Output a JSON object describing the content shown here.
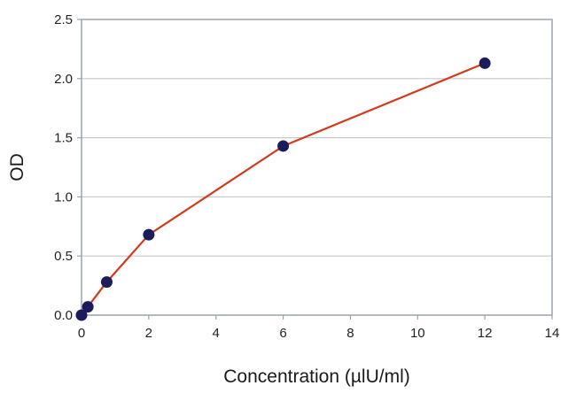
{
  "chart_data": {
    "type": "line",
    "title": "",
    "xlabel": "Concentration (µlU/ml)",
    "ylabel": "OD",
    "xlim": [
      0,
      14
    ],
    "ylim": [
      0,
      2.5
    ],
    "xticks": [
      0,
      2,
      4,
      6,
      8,
      10,
      12,
      14
    ],
    "yticks": [
      0,
      0.5,
      1,
      1.5,
      2,
      2.5
    ],
    "xtick_labels": [
      "0",
      "2",
      "4",
      "6",
      "8",
      "10",
      "12",
      "14"
    ],
    "ytick_labels": [
      "0.0",
      "0.5",
      "1.0",
      "1.5",
      "2.0",
      "2.5"
    ],
    "grid": "horizontal",
    "legend": "none",
    "series": [
      {
        "x": [
          0,
          0.188,
          0.75,
          2,
          6,
          12
        ],
        "y": [
          0.0,
          0.07,
          0.28,
          0.68,
          1.43,
          2.13
        ],
        "line_color": "#d23a1e",
        "marker_color": "#1c1c5c"
      }
    ],
    "colors": {
      "grid": "#c9c9c9",
      "frame": "#9aa3ad",
      "tick_text": "#222222"
    }
  }
}
